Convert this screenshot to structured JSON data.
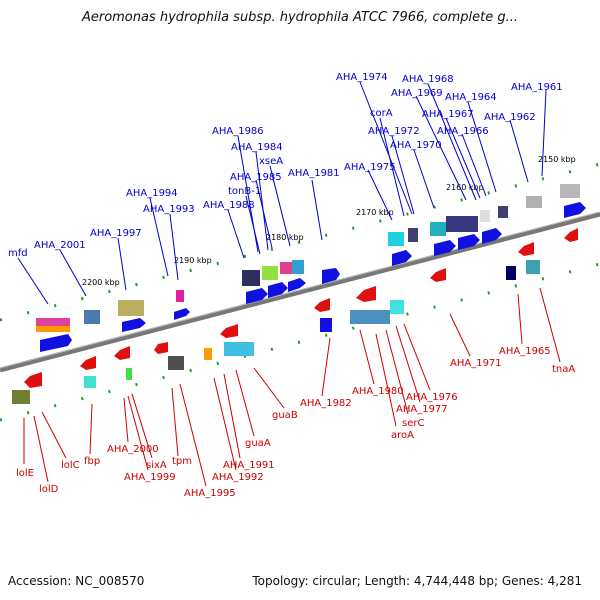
{
  "title": "Aeromonas hydrophila subsp. hydrophila ATCC 7966, complete g...",
  "footer": {
    "accession": "Accession: NC_008570",
    "summary": "Topology: circular; Length: 4,744,448 bp; Genes: 4,281"
  },
  "colors": {
    "forward": "#0000cc",
    "reverse": "#cc0000",
    "backbone": "#777777"
  },
  "ticks": [
    "2200 kbp",
    "2190 kbp",
    "2180 kbp",
    "2170 kbp",
    "2160 kbp",
    "2150 kbp"
  ],
  "forward_genes": [
    "mfd",
    "AHA_2001",
    "AHA_1997",
    "AHA_1994",
    "AHA_1993",
    "AHA_1988",
    "AHA_1986",
    "AHA_1984",
    "AHA_1985",
    "tonB-1",
    "xseA",
    "AHA_1981",
    "AHA_1975",
    "AHA_1974",
    "corA",
    "AHA_1972",
    "AHA_1970",
    "AHA_1968",
    "AHA_1969",
    "AHA_1967",
    "AHA_1966",
    "AHA_1964",
    "AHA_1962",
    "AHA_1961"
  ],
  "reverse_genes": [
    "lolE",
    "lolD",
    "lolC",
    "fbp",
    "AHA_2000",
    "sixA",
    "AHA_1999",
    "tpm",
    "AHA_1995",
    "AHA_1992",
    "AHA_1991",
    "guaA",
    "guaB",
    "AHA_1982",
    "AHA_1980",
    "aroA",
    "serC",
    "AHA_1977",
    "AHA_1976",
    "AHA_1971",
    "AHA_1965",
    "tnaA"
  ]
}
